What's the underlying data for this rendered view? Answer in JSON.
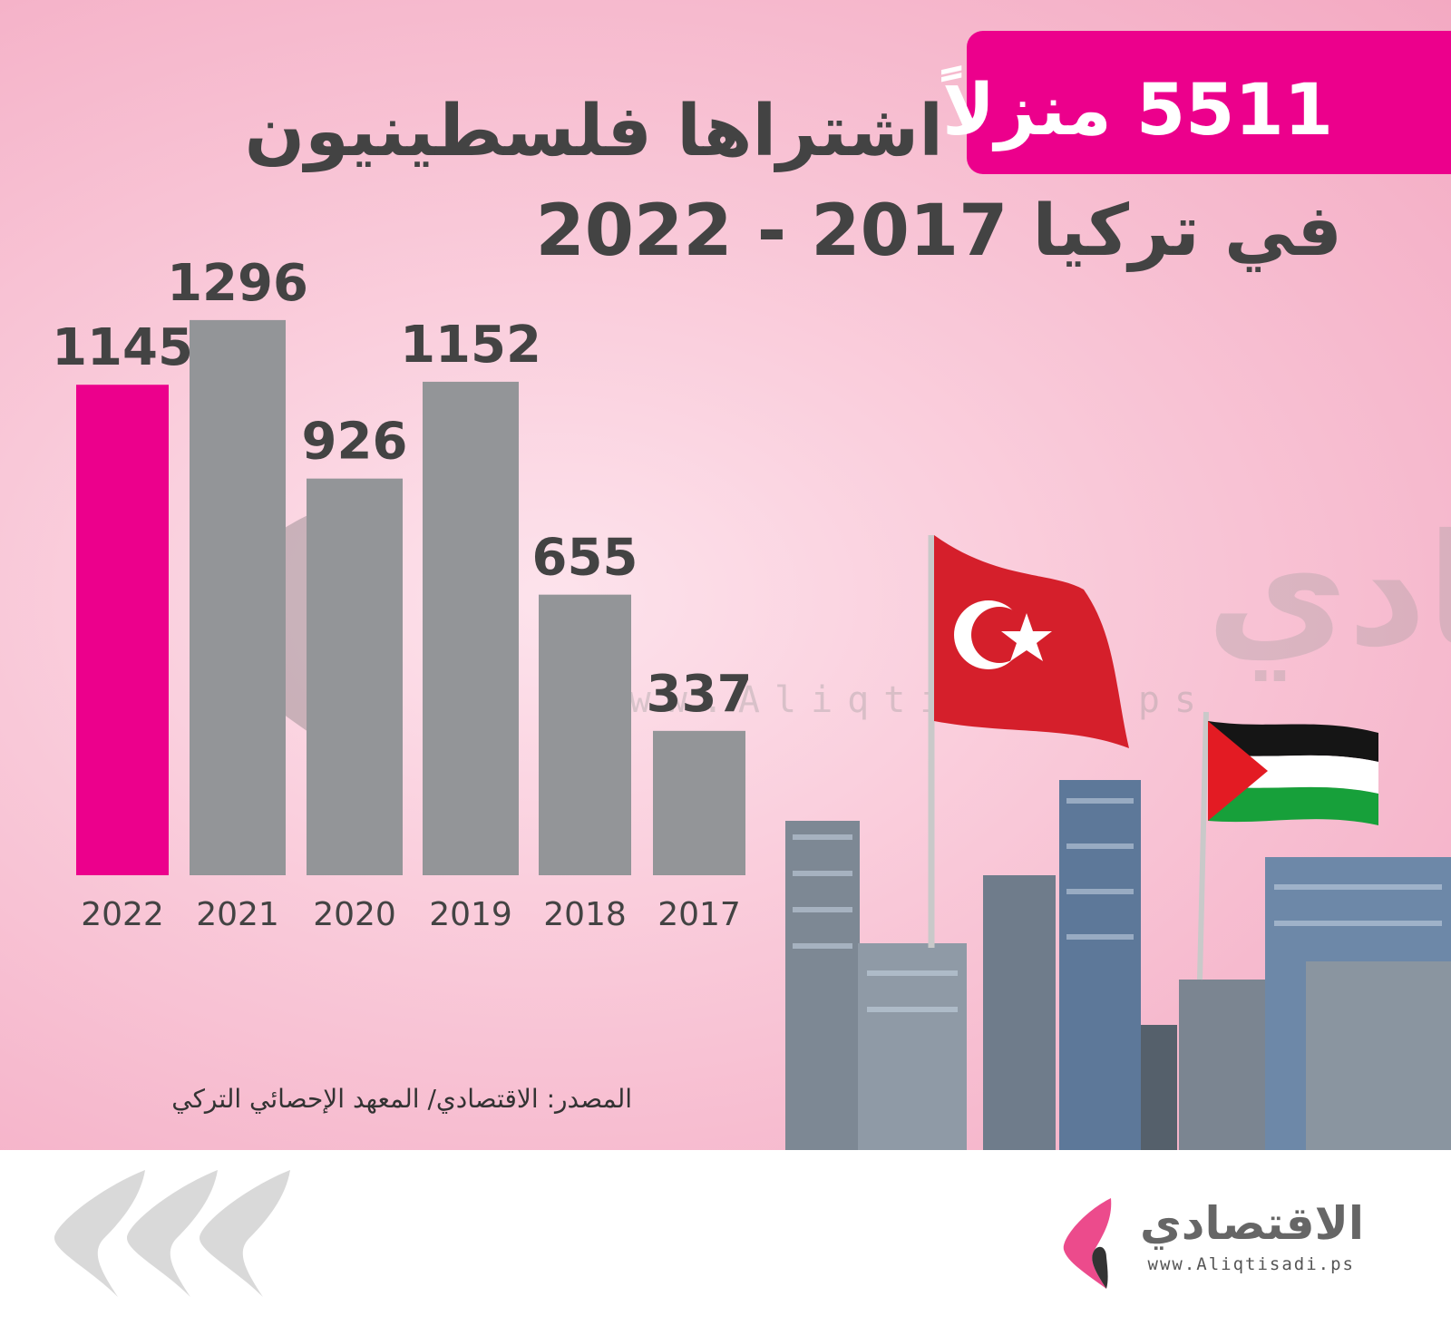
{
  "headline": {
    "badge": "5511 منزلاً",
    "line1": "اشتراها فلسطينيون",
    "line2": "في تركيا 2017 - 2022"
  },
  "source": "المصدر: الاقتصادي/ المعهد الإحصائي التركي",
  "watermark": {
    "arabic": "الاقتصادي",
    "url": "www.Aliqtisadi.ps"
  },
  "logo": {
    "text": "الاقتصادي",
    "url": "www.Aliqtisadi.ps"
  },
  "colors": {
    "highlight": "#ec008c",
    "bar": "#939598",
    "text_dark": "#434343",
    "highlight_label": "#a01a2e"
  },
  "chart_data": {
    "type": "bar",
    "categories": [
      "2022",
      "2021",
      "2020",
      "2019",
      "2018",
      "2017"
    ],
    "values": [
      1145,
      1296,
      926,
      1152,
      655,
      337
    ],
    "highlight": "2022",
    "title": "",
    "xlabel": "",
    "ylabel": "",
    "grid": false
  }
}
